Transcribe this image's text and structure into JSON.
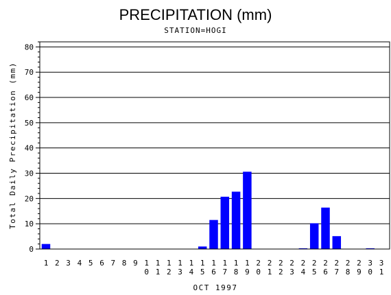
{
  "chart_data": {
    "type": "bar",
    "title": "PRECIPITATION (mm)",
    "subtitle": "STATION=HOGI",
    "xlabel": "OCT 1997",
    "ylabel": "Total Daily Precipitation (mm)",
    "ylim": [
      0,
      82
    ],
    "yticks": [
      "0",
      "10",
      "20",
      "30",
      "40",
      "50",
      "60",
      "70",
      "80"
    ],
    "categories": [
      "1",
      "2",
      "3",
      "4",
      "5",
      "6",
      "7",
      "8",
      "9",
      "10",
      "11",
      "12",
      "13",
      "14",
      "15",
      "16",
      "17",
      "18",
      "19",
      "20",
      "21",
      "22",
      "23",
      "24",
      "25",
      "26",
      "27",
      "28",
      "29",
      "30",
      "31"
    ],
    "values": [
      2,
      0,
      0,
      0,
      0,
      0,
      0,
      0,
      0,
      0,
      0,
      0,
      0,
      0,
      1,
      11.5,
      20.7,
      22.7,
      30.6,
      0,
      0,
      0,
      0,
      0.3,
      10.2,
      16.4,
      5.1,
      0,
      0,
      0.3,
      0
    ],
    "bar_color": "#0000ff",
    "grid": true
  }
}
